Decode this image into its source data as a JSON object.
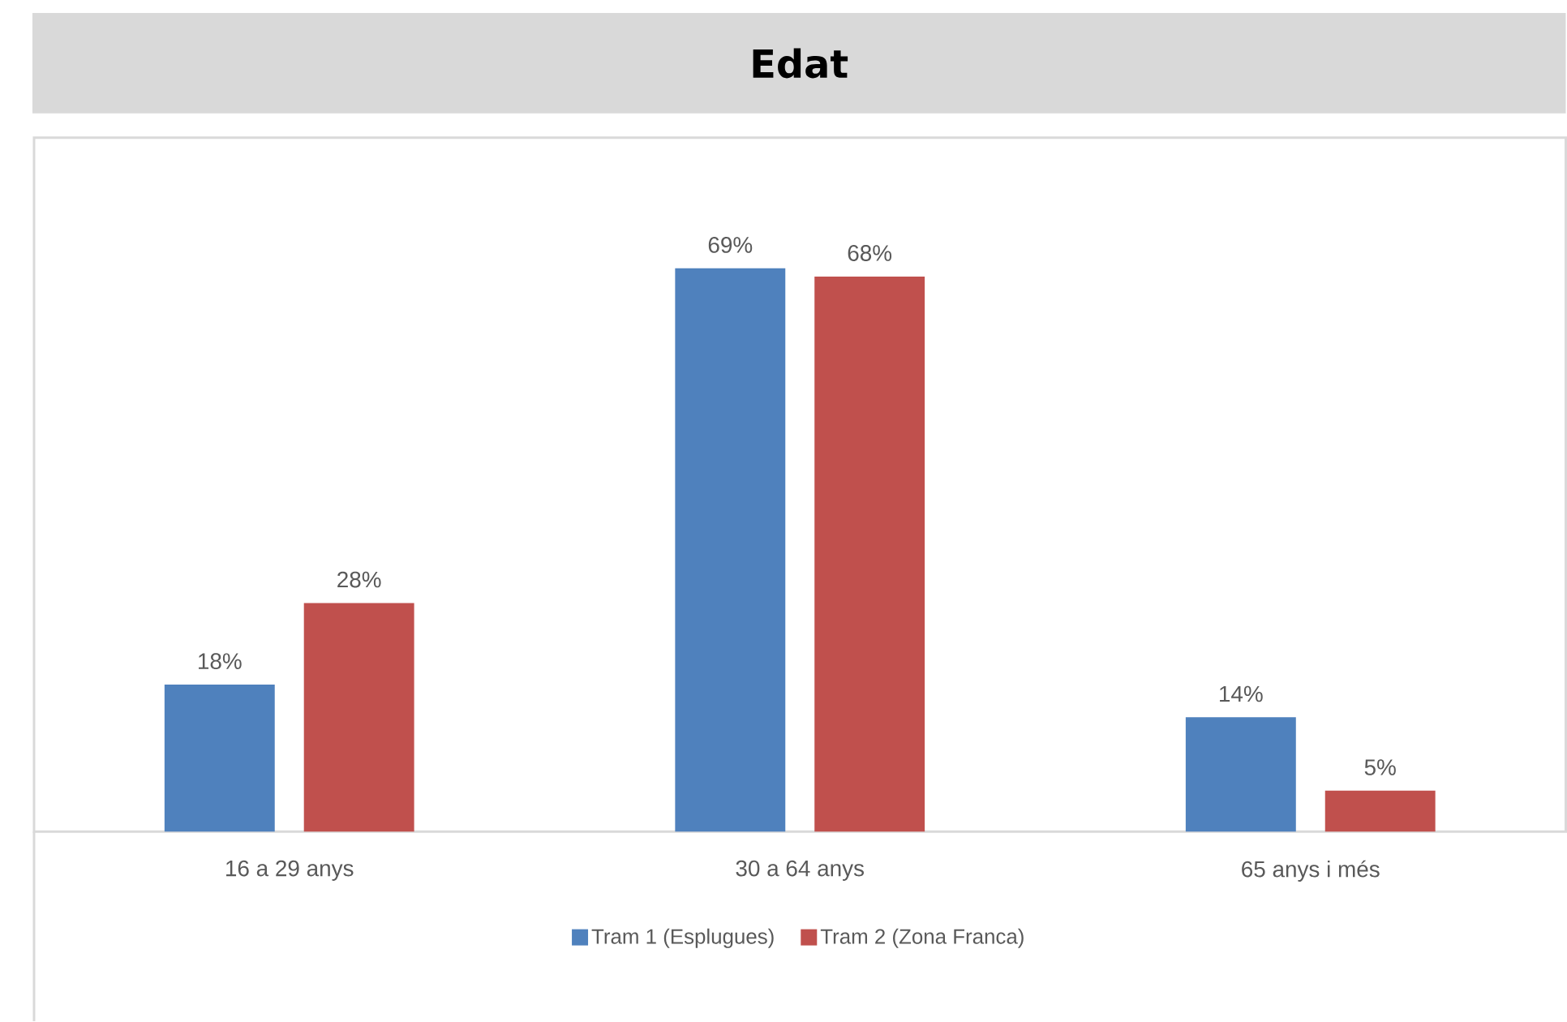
{
  "chart_data": {
    "type": "bar",
    "title": "Edat",
    "categories": [
      "16 a 29 anys",
      "30 a 64 anys",
      "65 anys i més"
    ],
    "series": [
      {
        "name": "Tram 1 (Esplugues)",
        "color": "#4f81bd",
        "values": [
          18,
          69,
          14
        ],
        "value_labels": [
          "18%",
          "69%",
          "14%"
        ]
      },
      {
        "name": "Tram 2 (Zona Franca)",
        "color": "#c0504d",
        "values": [
          28,
          68,
          5
        ],
        "value_labels": [
          "28%",
          "68%",
          "5%"
        ]
      }
    ],
    "ylim": [
      0,
      85
    ],
    "legend": "bottom"
  }
}
